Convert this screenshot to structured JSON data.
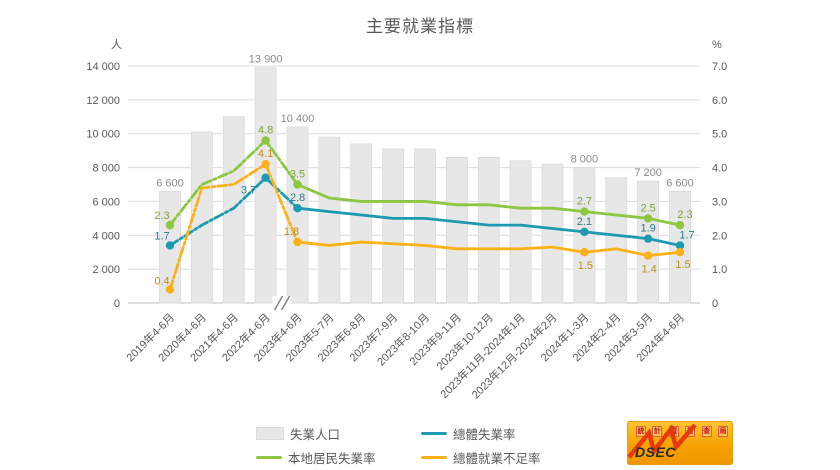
{
  "header": {
    "title": "主要就業指標"
  },
  "chart_data": {
    "type": "bar",
    "title": "主要就業指標",
    "left_axis": {
      "unit": "人",
      "max": 14000,
      "ticks": [
        "14 000",
        "12 000",
        "10 000",
        "8 000",
        "6 000",
        "4 000",
        "2 000",
        "0"
      ]
    },
    "right_axis": {
      "unit": "%",
      "max": 7.0,
      "ticks": [
        "7.0",
        "6.0",
        "5.0",
        "4.0",
        "3.0",
        "2.0",
        "1.0",
        "0"
      ]
    },
    "categories": [
      "2019年4-6月",
      "2020年4-6月",
      "2021年4-6月",
      "2022年4-6月",
      "2023年4-6月",
      "2023年5-7月",
      "2023年6-8月",
      "2023年7-9月",
      "2023年8-10月",
      "2023年9-11月",
      "2023年10-12月",
      "2023年11月-2024年1月",
      "2023年12月-2024年2月",
      "2024年1-3月",
      "2024年2-4月",
      "2024年3-5月",
      "2024年4-6月"
    ],
    "axis_break": {
      "symbol": "//",
      "between": [
        "2022年4-6月",
        "2023年4-6月"
      ]
    },
    "bars": {
      "name": "失業人口",
      "color": "#E7E7E7",
      "values": [
        6600,
        10100,
        11000,
        13900,
        10400,
        9800,
        9400,
        9100,
        9100,
        8600,
        8600,
        8400,
        8200,
        8000,
        7400,
        7200,
        6600
      ],
      "labels": {
        "0": "6 600",
        "3": "13 900",
        "4": "10 400",
        "13": "8 000",
        "15": "7 200",
        "16": "6 600"
      }
    },
    "dashed_until_index": 4,
    "series": [
      {
        "name": "本地居民失業率",
        "color": "#8DC63F",
        "label_color": "#7FA33C",
        "values": [
          2.3,
          3.5,
          3.9,
          4.8,
          3.5,
          3.1,
          3.0,
          3.0,
          3.0,
          2.9,
          2.9,
          2.8,
          2.8,
          2.7,
          2.6,
          2.5,
          2.3
        ],
        "labeled_points": {
          "0": "2.3",
          "3": "4.8",
          "4": "3.5",
          "13": "2.7",
          "15": "2.5",
          "16": "2.3"
        }
      },
      {
        "name": "總體失業率",
        "color": "#1E9AB0",
        "label_color": "#2C7A8C",
        "values": [
          1.7,
          2.3,
          2.8,
          3.7,
          2.8,
          2.7,
          2.6,
          2.5,
          2.5,
          2.4,
          2.3,
          2.3,
          2.2,
          2.1,
          2.0,
          1.9,
          1.7
        ],
        "labeled_points": {
          "0": "1.7",
          "3": "3.7",
          "4": "2.8",
          "13": "2.1",
          "15": "1.9",
          "16": "1.7"
        }
      },
      {
        "name": "總體就業不足率",
        "color": "#FBB117",
        "label_color": "#BC8E1A",
        "values": [
          0.4,
          3.4,
          3.5,
          4.1,
          1.8,
          1.7,
          1.8,
          1.75,
          1.7,
          1.6,
          1.6,
          1.6,
          1.65,
          1.5,
          1.6,
          1.4,
          1.5
        ],
        "labeled_points": {
          "0": "0.4",
          "3": "4.1",
          "4": "1.8",
          "13": "1.5",
          "15": "1.4",
          "16": "1.5"
        }
      }
    ]
  },
  "legend": {
    "items": [
      {
        "label": "失業人口",
        "swatch": "bar",
        "color": "#E7E7E7"
      },
      {
        "label": "總體失業率",
        "swatch": "line",
        "color": "#1E9AB0"
      },
      {
        "label": "本地居民失業率",
        "swatch": "line",
        "color": "#8DC63F"
      },
      {
        "label": "總體就業不足率",
        "swatch": "line",
        "color": "#FBB117"
      }
    ]
  },
  "logo": {
    "text": "DSEC",
    "agency": "統計暨普查局",
    "bg": "#F5A100",
    "accent": "#E8380D"
  }
}
